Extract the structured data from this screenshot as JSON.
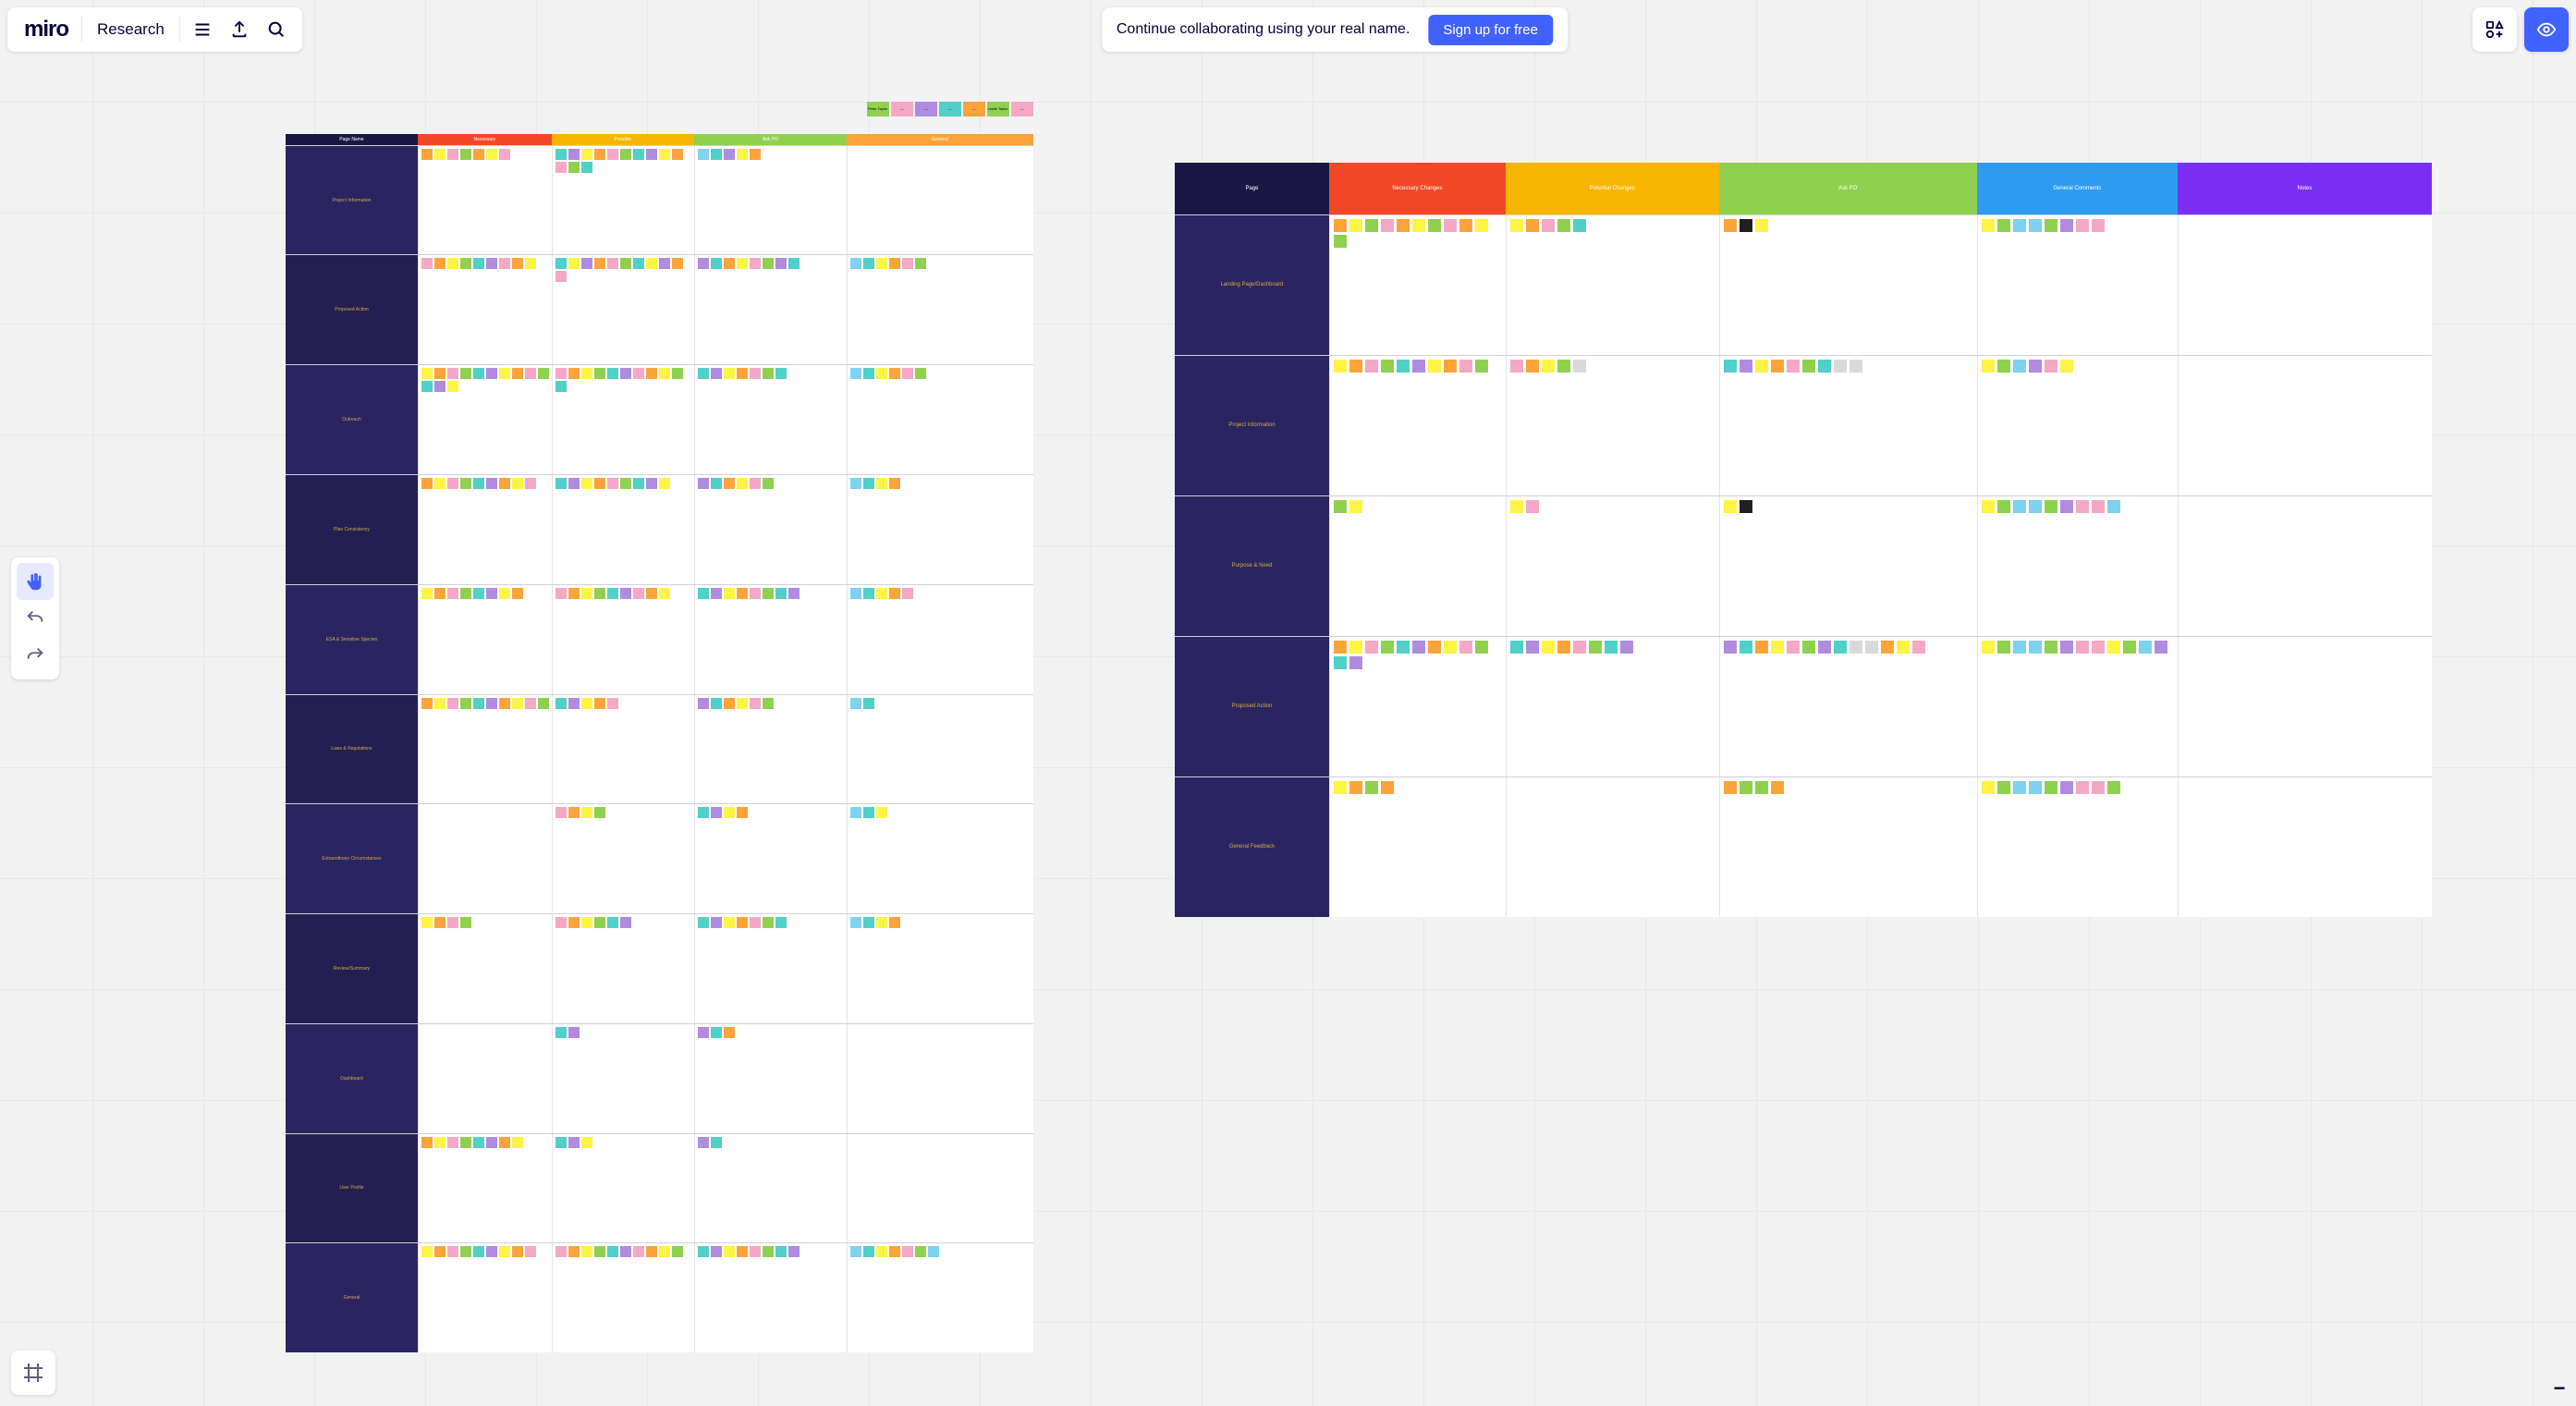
{
  "app": {
    "logo": "miro",
    "board_name": "Research"
  },
  "collab": {
    "message": "Continue collaborating using your real name.",
    "cta": "Sign up for free"
  },
  "sticky_palette": {
    "yellow": "#fef445",
    "orange": "#fca43a",
    "dark_orange": "#f2994a",
    "red": "#f24726",
    "pink": "#f5a8c6",
    "magenta": "#da4f9c",
    "purple": "#b08be0",
    "blue": "#7fd1f0",
    "teal": "#4fd0c8",
    "green": "#8fd14f",
    "lime": "#c9e265",
    "gray": "#d9d9d9",
    "black": "#202020"
  },
  "board_left": {
    "legend": [
      {
        "label": "Peter Taylor",
        "color": "#8fd14f"
      },
      {
        "label": "—",
        "color": "#f5a8c6"
      },
      {
        "label": "—",
        "color": "#b08be0"
      },
      {
        "label": "—",
        "color": "#4fd0c8"
      },
      {
        "label": "—",
        "color": "#fca43a"
      },
      {
        "label": "Leslie Taylor",
        "color": "#8fd14f"
      },
      {
        "label": "—",
        "color": "#f5a8c6"
      }
    ],
    "header_bg": {
      "label": "#1a1744",
      "necessary": "#f24726",
      "possible": "#f7b500",
      "ask_po": "#8fd14f",
      "general": "#fca43a"
    },
    "columns": [
      {
        "key": "page_name",
        "label": "Page Name"
      },
      {
        "key": "necessary",
        "label": "Necessary"
      },
      {
        "key": "possible",
        "label": "Possible"
      },
      {
        "key": "ask_po",
        "label": "Ask PO"
      },
      {
        "key": "general",
        "label": "General"
      }
    ],
    "rows": [
      {
        "label": "Project Information",
        "cells": {
          "necessary": [
            "orange",
            "yellow",
            "pink",
            "green",
            "orange",
            "yellow",
            "pink"
          ],
          "possible": [
            "teal",
            "purple",
            "yellow",
            "orange",
            "pink",
            "green",
            "teal",
            "purple",
            "yellow",
            "orange",
            "pink",
            "green",
            "teal"
          ],
          "ask_po": [
            "blue",
            "teal",
            "purple",
            "yellow",
            "orange"
          ],
          "general": []
        }
      },
      {
        "label": "Proposed Action",
        "cells": {
          "necessary": [
            "pink",
            "orange",
            "yellow",
            "green",
            "teal",
            "purple",
            "pink",
            "orange",
            "yellow"
          ],
          "possible": [
            "teal",
            "yellow",
            "purple",
            "orange",
            "pink",
            "green",
            "teal",
            "yellow",
            "purple",
            "orange",
            "pink"
          ],
          "ask_po": [
            "purple",
            "teal",
            "orange",
            "yellow",
            "pink",
            "green",
            "purple",
            "teal"
          ],
          "general": [
            "blue",
            "teal",
            "yellow",
            "orange",
            "pink",
            "green"
          ]
        }
      },
      {
        "label": "Outreach",
        "cells": {
          "necessary": [
            "yellow",
            "orange",
            "pink",
            "green",
            "teal",
            "purple",
            "yellow",
            "orange",
            "pink",
            "green",
            "teal",
            "purple",
            "yellow"
          ],
          "possible": [
            "pink",
            "orange",
            "yellow",
            "green",
            "teal",
            "purple",
            "pink",
            "orange",
            "yellow",
            "green",
            "teal"
          ],
          "ask_po": [
            "teal",
            "purple",
            "yellow",
            "orange",
            "pink",
            "green",
            "teal"
          ],
          "general": [
            "blue",
            "teal",
            "yellow",
            "orange",
            "pink",
            "green"
          ]
        }
      },
      {
        "label": "Plan Consistency",
        "cells": {
          "necessary": [
            "orange",
            "yellow",
            "pink",
            "green",
            "teal",
            "purple",
            "orange",
            "yellow",
            "pink"
          ],
          "possible": [
            "teal",
            "purple",
            "yellow",
            "orange",
            "pink",
            "green",
            "teal",
            "purple",
            "yellow"
          ],
          "ask_po": [
            "purple",
            "teal",
            "orange",
            "yellow",
            "pink",
            "green"
          ],
          "general": [
            "blue",
            "teal",
            "yellow",
            "orange"
          ]
        }
      },
      {
        "label": "ESA & Sensitive Species",
        "cells": {
          "necessary": [
            "yellow",
            "orange",
            "pink",
            "green",
            "teal",
            "purple",
            "yellow",
            "orange"
          ],
          "possible": [
            "pink",
            "orange",
            "yellow",
            "green",
            "teal",
            "purple",
            "pink",
            "orange",
            "yellow"
          ],
          "ask_po": [
            "teal",
            "purple",
            "yellow",
            "orange",
            "pink",
            "green",
            "teal",
            "purple"
          ],
          "general": [
            "blue",
            "teal",
            "yellow",
            "orange",
            "pink"
          ]
        }
      },
      {
        "label": "Laws & Regulations",
        "cells": {
          "necessary": [
            "orange",
            "yellow",
            "pink",
            "green",
            "teal",
            "purple",
            "orange",
            "yellow",
            "pink",
            "green"
          ],
          "possible": [
            "teal",
            "purple",
            "yellow",
            "orange",
            "pink"
          ],
          "ask_po": [
            "purple",
            "teal",
            "orange",
            "yellow",
            "pink",
            "green"
          ],
          "general": [
            "blue",
            "teal"
          ]
        }
      },
      {
        "label": "Extraordinary Circumstances",
        "cells": {
          "necessary": [],
          "possible": [
            "pink",
            "orange",
            "yellow",
            "green"
          ],
          "ask_po": [
            "teal",
            "purple",
            "yellow",
            "orange"
          ],
          "general": [
            "blue",
            "teal",
            "yellow"
          ]
        }
      },
      {
        "label": "Review/Summary",
        "cells": {
          "necessary": [
            "yellow",
            "orange",
            "pink",
            "green"
          ],
          "possible": [
            "pink",
            "orange",
            "yellow",
            "green",
            "teal",
            "purple"
          ],
          "ask_po": [
            "teal",
            "purple",
            "yellow",
            "orange",
            "pink",
            "green",
            "teal"
          ],
          "general": [
            "blue",
            "teal",
            "yellow",
            "orange"
          ]
        }
      },
      {
        "label": "Dashboard",
        "cells": {
          "necessary": [],
          "possible": [
            "teal",
            "purple"
          ],
          "ask_po": [
            "purple",
            "teal",
            "orange"
          ],
          "general": []
        }
      },
      {
        "label": "User Profile",
        "cells": {
          "necessary": [
            "orange",
            "yellow",
            "pink",
            "green",
            "teal",
            "purple",
            "orange",
            "yellow"
          ],
          "possible": [
            "teal",
            "purple",
            "yellow"
          ],
          "ask_po": [
            "purple",
            "teal"
          ],
          "general": []
        }
      },
      {
        "label": "General",
        "cells": {
          "necessary": [
            "yellow",
            "orange",
            "pink",
            "green",
            "teal",
            "purple",
            "yellow",
            "orange",
            "pink"
          ],
          "possible": [
            "pink",
            "orange",
            "yellow",
            "green",
            "teal",
            "purple",
            "pink",
            "orange",
            "yellow",
            "green"
          ],
          "ask_po": [
            "teal",
            "purple",
            "yellow",
            "orange",
            "pink",
            "green",
            "teal",
            "purple"
          ],
          "general": [
            "blue",
            "teal",
            "yellow",
            "orange",
            "pink",
            "green",
            "blue"
          ]
        }
      }
    ]
  },
  "board_right": {
    "columns": [
      {
        "key": "page",
        "label": "Page",
        "bg": "#1a1744",
        "width": 12.3
      },
      {
        "key": "necessary",
        "label": "Necessary Changes",
        "bg": "#f24726",
        "width": 14.0
      },
      {
        "key": "potential",
        "label": "Potential Changes",
        "bg": "#f7b500",
        "width": 17.0
      },
      {
        "key": "ask_po",
        "label": "Ask PO",
        "bg": "#8fd14f",
        "width": 20.5
      },
      {
        "key": "comments",
        "label": "General Comments",
        "bg": "#2d9bf0",
        "width": 16.0
      },
      {
        "key": "notes",
        "label": "Notes",
        "bg": "#7b2ff2",
        "width": 20.2
      }
    ],
    "rows": [
      {
        "label": "Landing Page/Dashboard",
        "cells": {
          "necessary": [
            "orange",
            "yellow",
            "green",
            "pink",
            "orange",
            "yellow",
            "green",
            "pink",
            "orange",
            "yellow",
            "green"
          ],
          "potential": [
            "yellow",
            "orange",
            "pink",
            "green",
            "teal"
          ],
          "ask_po": [
            "orange",
            "black",
            "yellow"
          ],
          "comments": [
            "yellow",
            "green",
            "blue",
            "blue",
            "green",
            "purple",
            "pink",
            "pink"
          ],
          "notes": []
        }
      },
      {
        "label": "Project Information",
        "cells": {
          "necessary": [
            "yellow",
            "orange",
            "pink",
            "green",
            "teal",
            "purple",
            "yellow",
            "orange",
            "pink",
            "green"
          ],
          "potential": [
            "pink",
            "orange",
            "yellow",
            "green",
            "gray"
          ],
          "ask_po": [
            "teal",
            "purple",
            "yellow",
            "orange",
            "pink",
            "green",
            "teal",
            "gray",
            "gray"
          ],
          "comments": [
            "yellow",
            "green",
            "blue",
            "purple",
            "pink",
            "yellow"
          ],
          "notes": []
        }
      },
      {
        "label": "Purpose & Need",
        "cells": {
          "necessary": [
            "green",
            "yellow"
          ],
          "potential": [
            "yellow",
            "pink"
          ],
          "ask_po": [
            "yellow",
            "black"
          ],
          "comments": [
            "yellow",
            "green",
            "blue",
            "blue",
            "green",
            "purple",
            "pink",
            "pink",
            "blue"
          ],
          "notes": []
        }
      },
      {
        "label": "Proposed Action",
        "cells": {
          "necessary": [
            "orange",
            "yellow",
            "pink",
            "green",
            "teal",
            "purple",
            "orange",
            "yellow",
            "pink",
            "green",
            "teal",
            "purple"
          ],
          "potential": [
            "teal",
            "purple",
            "yellow",
            "orange",
            "pink",
            "green",
            "teal",
            "purple"
          ],
          "ask_po": [
            "purple",
            "teal",
            "orange",
            "yellow",
            "pink",
            "green",
            "purple",
            "teal",
            "gray",
            "gray",
            "orange",
            "yellow",
            "pink"
          ],
          "comments": [
            "yellow",
            "green",
            "blue",
            "blue",
            "green",
            "purple",
            "pink",
            "pink",
            "yellow",
            "green",
            "blue",
            "purple"
          ],
          "notes": []
        }
      },
      {
        "label": "General Feedback",
        "cells": {
          "necessary": [
            "yellow",
            "orange",
            "green",
            "orange"
          ],
          "potential": [],
          "ask_po": [
            "orange",
            "green",
            "green",
            "orange"
          ],
          "comments": [
            "yellow",
            "green",
            "blue",
            "blue",
            "green",
            "purple",
            "pink",
            "pink",
            "green"
          ],
          "notes": []
        }
      }
    ]
  }
}
